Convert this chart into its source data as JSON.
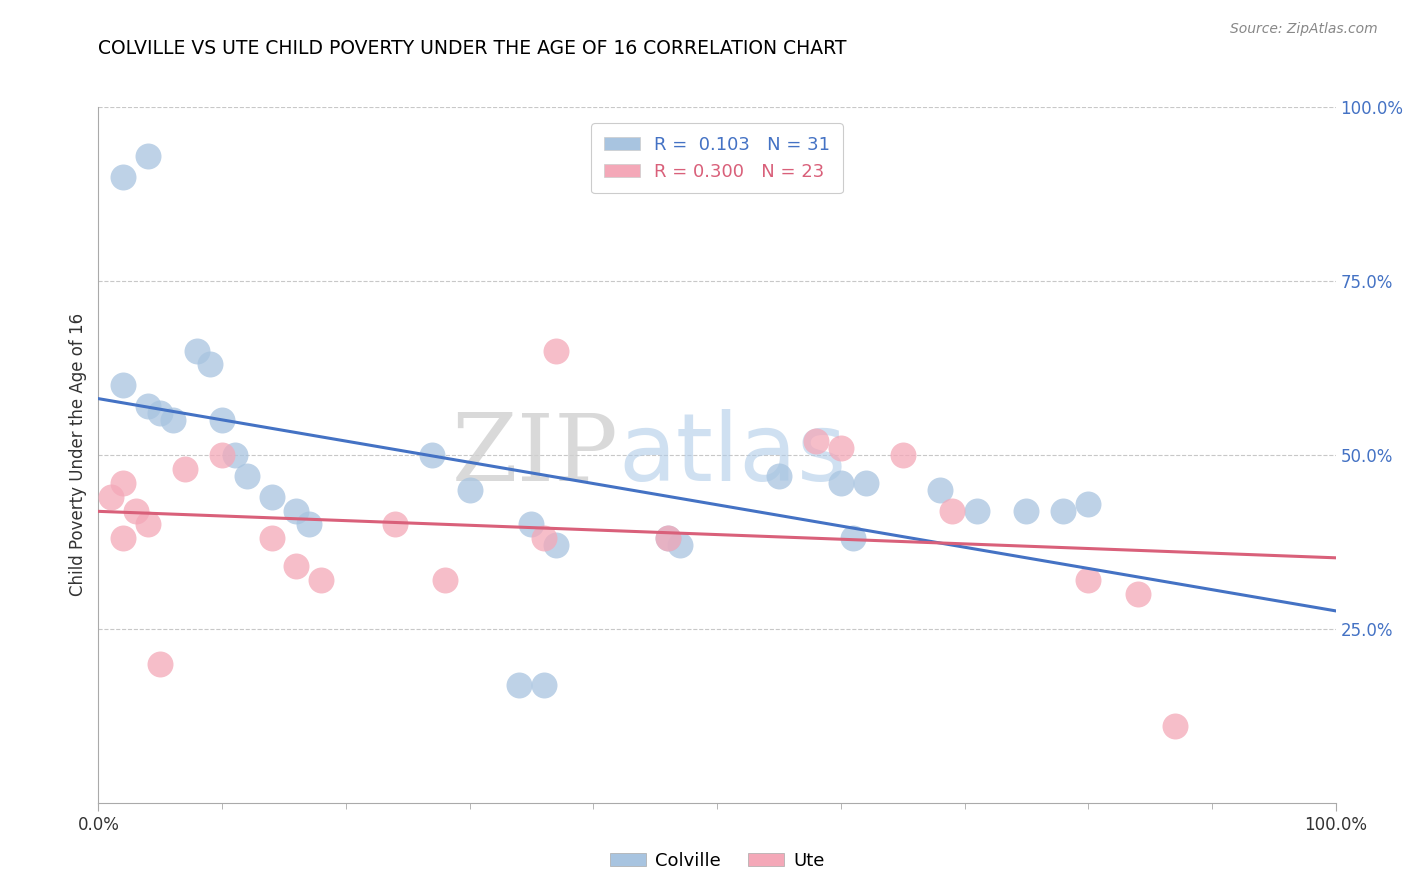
{
  "title": "COLVILLE VS UTE CHILD POVERTY UNDER THE AGE OF 16 CORRELATION CHART",
  "source": "Source: ZipAtlas.com",
  "ylabel": "Child Poverty Under the Age of 16",
  "colville_R": 0.103,
  "colville_N": 31,
  "ute_R": 0.3,
  "ute_N": 23,
  "colville_color": "#a8c4e0",
  "ute_color": "#f4a8b8",
  "colville_line_color": "#4472c4",
  "ute_line_color": "#d9607a",
  "background_color": "#ffffff",
  "grid_color": "#c8c8c8",
  "xlim": [
    0,
    1
  ],
  "ylim": [
    0,
    1
  ],
  "colville_x": [
    0.02,
    0.04,
    0.02,
    0.04,
    0.05,
    0.06,
    0.08,
    0.09,
    0.1,
    0.11,
    0.12,
    0.14,
    0.16,
    0.17,
    0.27,
    0.3,
    0.35,
    0.37,
    0.46,
    0.47,
    0.55,
    0.6,
    0.61,
    0.68,
    0.71,
    0.75,
    0.78,
    0.8,
    0.34,
    0.36,
    0.62
  ],
  "colville_y": [
    0.9,
    0.93,
    0.6,
    0.57,
    0.56,
    0.55,
    0.65,
    0.63,
    0.55,
    0.5,
    0.47,
    0.44,
    0.42,
    0.4,
    0.5,
    0.45,
    0.4,
    0.37,
    0.38,
    0.37,
    0.47,
    0.46,
    0.38,
    0.45,
    0.42,
    0.42,
    0.42,
    0.43,
    0.17,
    0.17,
    0.46
  ],
  "ute_x": [
    0.01,
    0.02,
    0.02,
    0.03,
    0.04,
    0.05,
    0.07,
    0.1,
    0.14,
    0.16,
    0.18,
    0.24,
    0.28,
    0.36,
    0.37,
    0.46,
    0.58,
    0.6,
    0.65,
    0.69,
    0.8,
    0.84,
    0.87
  ],
  "ute_y": [
    0.44,
    0.46,
    0.38,
    0.42,
    0.4,
    0.2,
    0.48,
    0.5,
    0.38,
    0.34,
    0.32,
    0.4,
    0.32,
    0.38,
    0.65,
    0.38,
    0.52,
    0.51,
    0.5,
    0.42,
    0.32,
    0.3,
    0.11
  ]
}
